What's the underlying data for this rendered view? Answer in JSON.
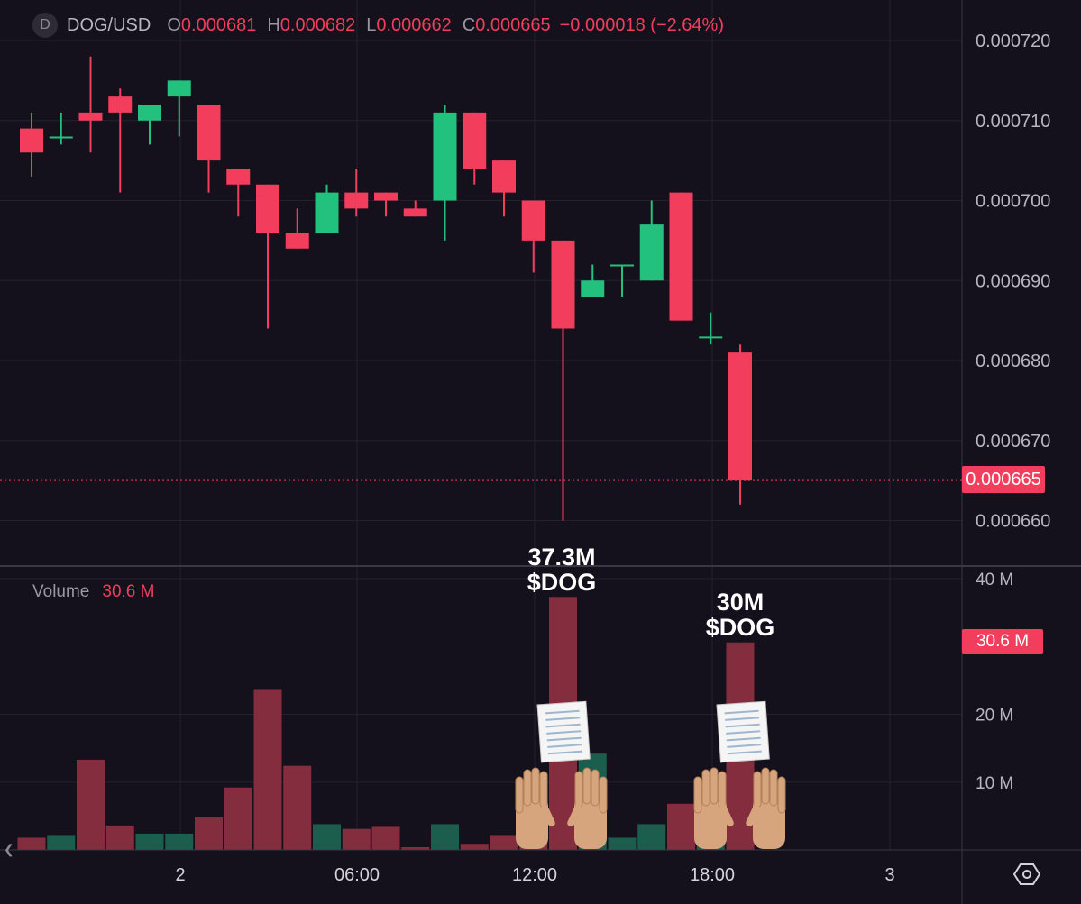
{
  "header": {
    "logo_letter": "D",
    "symbol": "DOG/USD",
    "open_label": "O",
    "open": "0.000681",
    "high_label": "H",
    "high": "0.000682",
    "low_label": "L",
    "low": "0.000662",
    "close_label": "C",
    "close": "0.000665",
    "change": "−0.000018 (−2.64%)"
  },
  "volume_header": {
    "label": "Volume",
    "value": "30.6 M"
  },
  "price_tag": "0.000665",
  "volume_tag": "30.6 M",
  "annotations": [
    {
      "line1": "37.3M",
      "line2": "$DOG"
    },
    {
      "line1": "30M",
      "line2": "$DOG"
    }
  ],
  "colors": {
    "up": "#23c17e",
    "down": "#f23d5c",
    "up_vol": "#1c5e4e",
    "down_vol": "#832d3f",
    "background": "#14111c"
  },
  "chart_data": {
    "type": "candlestick",
    "price_axis": {
      "ticks": [
        "0.000720",
        "0.000710",
        "0.000700",
        "0.000690",
        "0.000680",
        "0.000670",
        "0.000660"
      ],
      "range": [
        0.000655,
        0.000723
      ]
    },
    "volume_axis": {
      "ticks": [
        "40 M",
        "20 M",
        "10 M"
      ],
      "range": [
        0,
        40
      ]
    },
    "time_axis": {
      "ticks": [
        "2",
        "06:00",
        "12:00",
        "18:00",
        "3"
      ]
    },
    "current_price": 0.000665,
    "candles": [
      {
        "o": 0.000709,
        "h": 0.000711,
        "l": 0.000703,
        "c": 0.000706,
        "v": 1.8
      },
      {
        "o": 0.000708,
        "h": 0.000711,
        "l": 0.000707,
        "c": 0.000708,
        "v": 2.2
      },
      {
        "o": 0.000711,
        "h": 0.000718,
        "l": 0.000706,
        "c": 0.00071,
        "v": 13.3
      },
      {
        "o": 0.000713,
        "h": 0.000714,
        "l": 0.000701,
        "c": 0.000711,
        "v": 3.6
      },
      {
        "o": 0.00071,
        "h": 0.000712,
        "l": 0.000707,
        "c": 0.000712,
        "v": 2.4
      },
      {
        "o": 0.000713,
        "h": 0.000715,
        "l": 0.000708,
        "c": 0.000715,
        "v": 2.4
      },
      {
        "o": 0.000712,
        "h": 0.000712,
        "l": 0.000701,
        "c": 0.000705,
        "v": 4.8
      },
      {
        "o": 0.000704,
        "h": 0.000704,
        "l": 0.000698,
        "c": 0.000702,
        "v": 9.2
      },
      {
        "o": 0.000702,
        "h": 0.000702,
        "l": 0.000684,
        "c": 0.000696,
        "v": 23.6
      },
      {
        "o": 0.000696,
        "h": 0.000699,
        "l": 0.000694,
        "c": 0.000694,
        "v": 12.4
      },
      {
        "o": 0.000696,
        "h": 0.000702,
        "l": 0.000696,
        "c": 0.000701,
        "v": 3.8
      },
      {
        "o": 0.000701,
        "h": 0.000704,
        "l": 0.000698,
        "c": 0.000699,
        "v": 3.1
      },
      {
        "o": 0.000701,
        "h": 0.000701,
        "l": 0.000698,
        "c": 0.0007,
        "v": 3.4
      },
      {
        "o": 0.000699,
        "h": 0.0007,
        "l": 0.000698,
        "c": 0.000698,
        "v": 0.4
      },
      {
        "o": 0.0007,
        "h": 0.000712,
        "l": 0.000695,
        "c": 0.000711,
        "v": 3.8
      },
      {
        "o": 0.000711,
        "h": 0.000711,
        "l": 0.000702,
        "c": 0.000704,
        "v": 0.9
      },
      {
        "o": 0.000705,
        "h": 0.000705,
        "l": 0.000698,
        "c": 0.000701,
        "v": 2.2
      },
      {
        "o": 0.0007,
        "h": 0.0007,
        "l": 0.000691,
        "c": 0.000695,
        "v": 5.2
      },
      {
        "o": 0.000695,
        "h": 0.000695,
        "l": 0.00066,
        "c": 0.000684,
        "v": 37.3
      },
      {
        "o": 0.000688,
        "h": 0.000692,
        "l": 0.000688,
        "c": 0.00069,
        "v": 14.2
      },
      {
        "o": 0.000692,
        "h": 0.000692,
        "l": 0.000688,
        "c": 0.000692,
        "v": 1.8
      },
      {
        "o": 0.00069,
        "h": 0.0007,
        "l": 0.00069,
        "c": 0.000697,
        "v": 3.8
      },
      {
        "o": 0.000701,
        "h": 0.000701,
        "l": 0.000685,
        "c": 0.000685,
        "v": 6.8
      },
      {
        "o": 0.000683,
        "h": 0.000686,
        "l": 0.000682,
        "c": 0.000683,
        "v": 2.2
      },
      {
        "o": 0.000681,
        "h": 0.000682,
        "l": 0.000662,
        "c": 0.000665,
        "v": 30.6
      }
    ]
  }
}
